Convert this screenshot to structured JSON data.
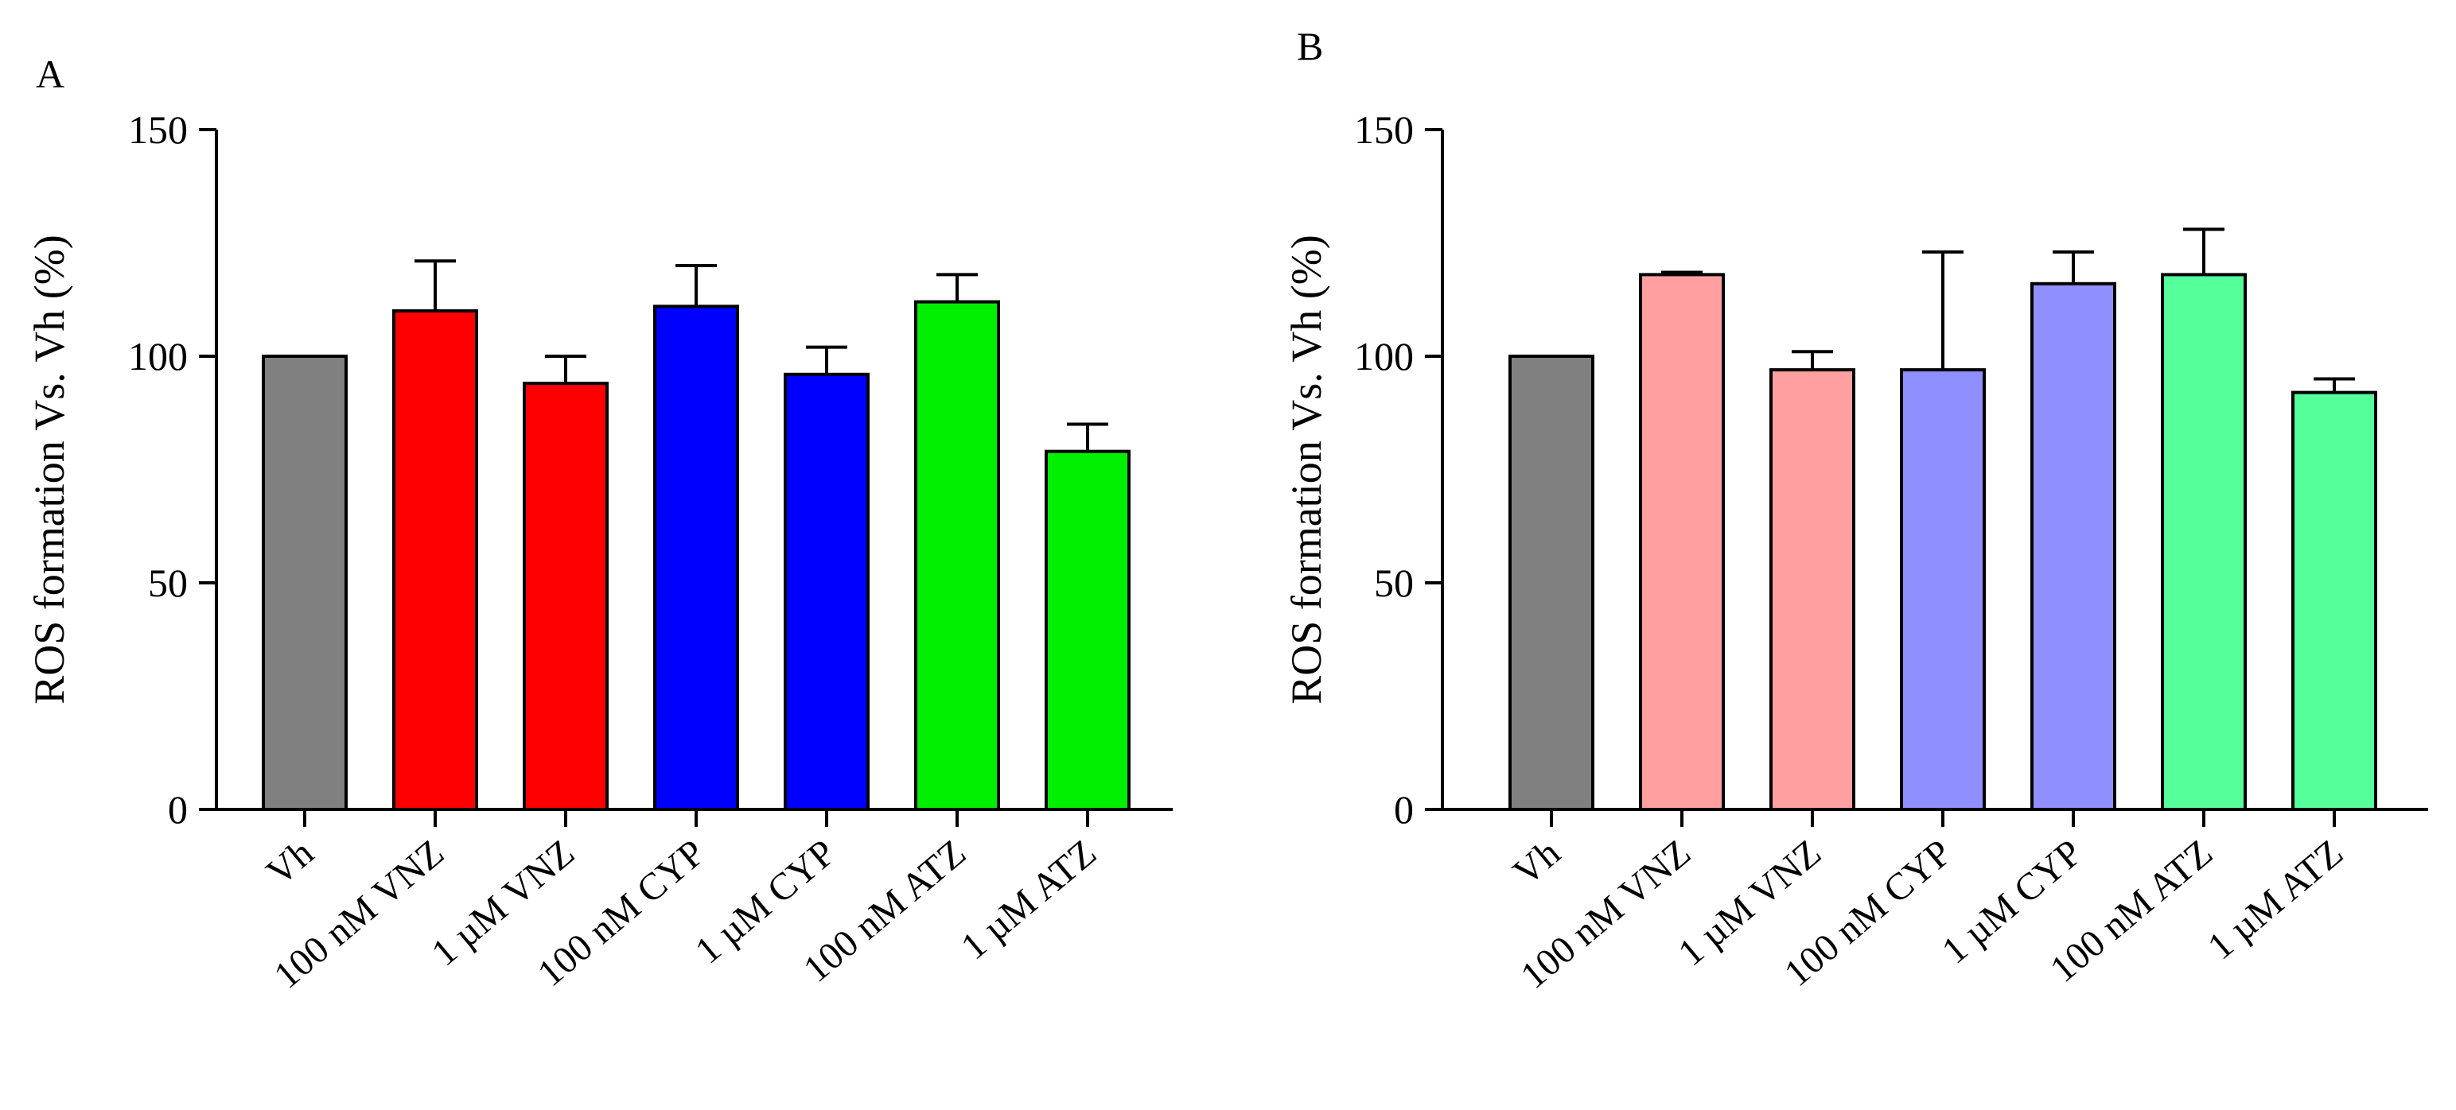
{
  "chart_data": [
    {
      "panel_label": "A",
      "type": "bar",
      "title": "",
      "xlabel": "",
      "ylabel": "ROS formation Vs. Vh (%)",
      "ylim": [
        0,
        150
      ],
      "yticks": [
        "0",
        "50",
        "100",
        "150"
      ],
      "grid": false,
      "categories": [
        "Vh",
        "100 nM VNZ",
        "1 µM VNZ",
        "100 nM CYP",
        "1 µM CYP",
        "100 nM ATZ",
        "1 µM ATZ"
      ],
      "values": [
        100,
        110,
        94,
        111,
        96,
        112,
        79
      ],
      "errors": [
        0,
        11,
        6,
        9,
        6,
        6,
        6
      ],
      "colors": [
        "#808080",
        "#ff0000",
        "#ff0000",
        "#0000ff",
        "#0000ff",
        "#00ee00",
        "#00ee00"
      ]
    },
    {
      "panel_label": "B",
      "type": "bar",
      "title": "",
      "xlabel": "",
      "ylabel": "ROS formation Vs. Vh (%)",
      "ylim": [
        0,
        150
      ],
      "yticks": [
        "0",
        "50",
        "100",
        "150"
      ],
      "grid": false,
      "categories": [
        "Vh",
        "100 nM VNZ",
        "1 µM VNZ",
        "100 nM CYP",
        "1 µM CYP",
        "100 nM ATZ",
        "1 µM ATZ"
      ],
      "values": [
        100,
        118,
        97,
        97,
        116,
        118,
        92
      ],
      "errors": [
        0,
        0.5,
        4,
        26,
        7,
        10,
        3
      ],
      "colors": [
        "#808080",
        "#ff9f9f",
        "#ff9f9f",
        "#8f8fff",
        "#8f8fff",
        "#55ff99",
        "#55ff99"
      ]
    }
  ]
}
